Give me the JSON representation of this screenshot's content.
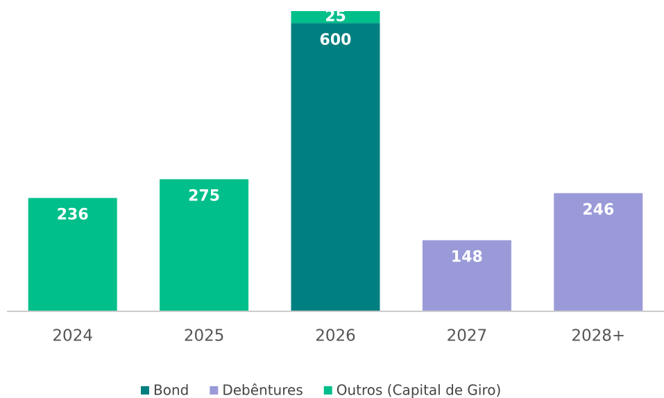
{
  "chart_data": {
    "type": "stacked_bar",
    "categories": [
      "2024",
      "2025",
      "2026",
      "2027",
      "2028+"
    ],
    "series": [
      {
        "name": "Bond",
        "color": "#007f80",
        "values": [
          null,
          null,
          600,
          null,
          null
        ]
      },
      {
        "name": "Debêntures",
        "color": "#9a9ad9",
        "values": [
          null,
          null,
          null,
          148,
          246
        ]
      },
      {
        "name": "Outros (Capital de Giro)",
        "color": "#00bf8a",
        "values": [
          236,
          275,
          25,
          null,
          null
        ]
      }
    ]
  }
}
